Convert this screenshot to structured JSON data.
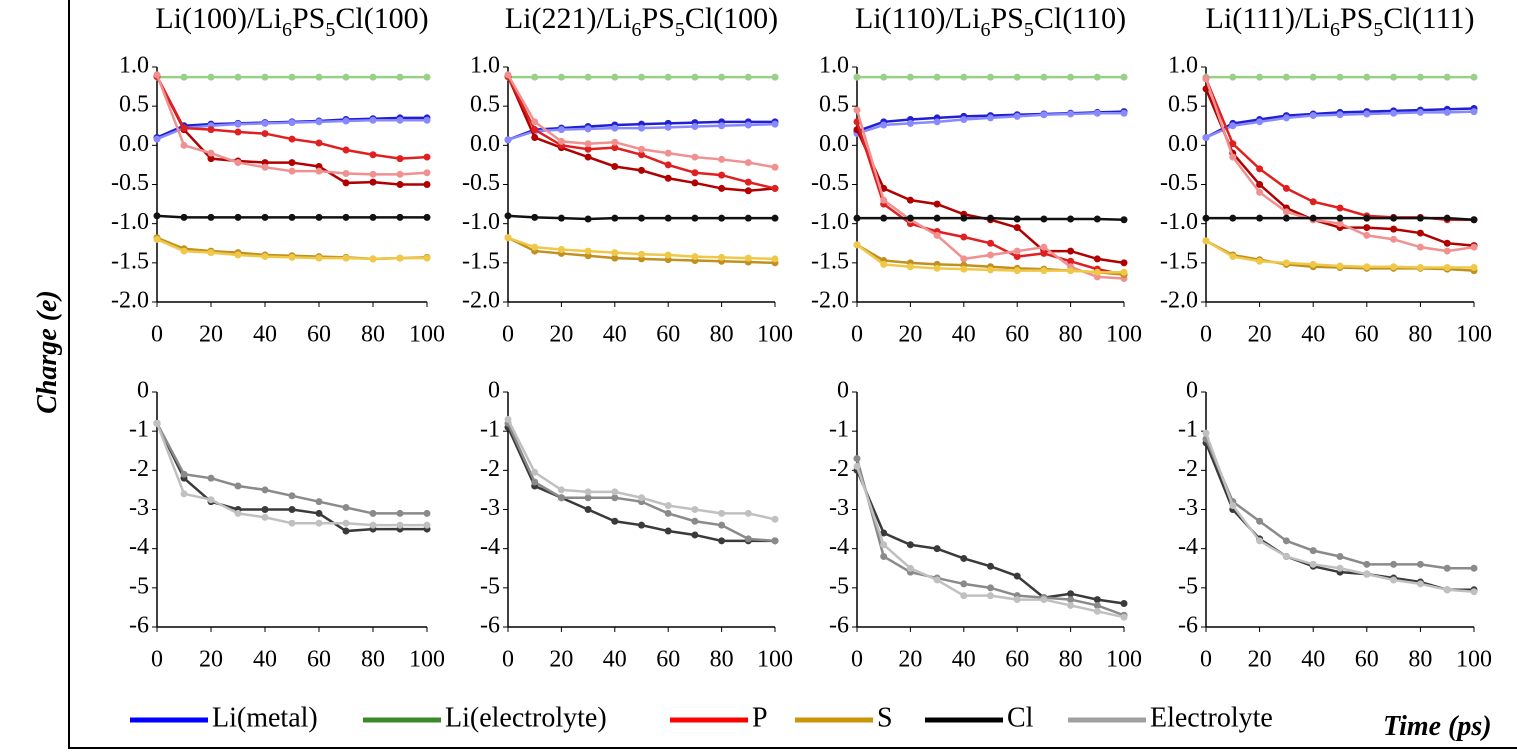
{
  "ylabel": "Charge (e)",
  "xlabel": "Time (ps)",
  "legend": [
    {
      "name": "Li(metal)",
      "color": "#0000ff"
    },
    {
      "name": "Li(electrolyte)",
      "color": "#3a8a2a"
    },
    {
      "name": "P",
      "color": "#ff0000"
    },
    {
      "name": "S",
      "color": "#c8960a"
    },
    {
      "name": "Cl",
      "color": "#000000"
    },
    {
      "name": "Electrolyte",
      "color": "#a0a0a0"
    }
  ],
  "chart_data": [
    {
      "type": "line",
      "title": "Li(100)/Li6PS5Cl(100)",
      "x": [
        0,
        10,
        20,
        30,
        40,
        50,
        60,
        70,
        80,
        90,
        100
      ],
      "xlim": [
        0,
        100
      ],
      "xticks": [
        0,
        20,
        40,
        60,
        80,
        100
      ],
      "ylim": [
        -2,
        1
      ],
      "yticks": [
        {
          "value": -2,
          "label": "-2.0"
        },
        -1.5,
        {
          "value": -1,
          "label": "-1.0"
        },
        -0.5,
        {
          "value": 0,
          "label": "0.0"
        },
        0.5,
        {
          "value": 1,
          "label": "1.0"
        }
      ],
      "series": [
        {
          "color": "#2020d0",
          "values": [
            0.1,
            0.25,
            0.27,
            0.28,
            0.29,
            0.3,
            0.31,
            0.33,
            0.34,
            0.35,
            0.35
          ]
        },
        {
          "color": "#8888ff",
          "values": [
            0.08,
            0.22,
            0.25,
            0.27,
            0.28,
            0.29,
            0.3,
            0.31,
            0.32,
            0.32,
            0.32
          ]
        },
        {
          "color": "#98d088",
          "values": [
            0.87,
            0.87,
            0.87,
            0.87,
            0.87,
            0.87,
            0.87,
            0.87,
            0.87,
            0.87,
            0.87
          ]
        },
        {
          "color": "#b00000",
          "values": [
            0.88,
            0.2,
            -0.17,
            -0.2,
            -0.22,
            -0.22,
            -0.27,
            -0.48,
            -0.47,
            -0.5,
            -0.5
          ]
        },
        {
          "color": "#e02020",
          "values": [
            0.88,
            0.22,
            0.2,
            0.17,
            0.15,
            0.08,
            0.03,
            -0.06,
            -0.12,
            -0.17,
            -0.15
          ]
        },
        {
          "color": "#f09090",
          "values": [
            0.9,
            0,
            -0.1,
            -0.22,
            -0.28,
            -0.33,
            -0.33,
            -0.36,
            -0.37,
            -0.37,
            -0.35
          ]
        },
        {
          "color": "#c09020",
          "values": [
            -1.18,
            -1.32,
            -1.35,
            -1.37,
            -1.4,
            -1.41,
            -1.42,
            -1.43,
            -1.45,
            -1.44,
            -1.43
          ]
        },
        {
          "color": "#f0c848",
          "values": [
            -1.2,
            -1.35,
            -1.37,
            -1.4,
            -1.42,
            -1.43,
            -1.44,
            -1.44,
            -1.45,
            -1.44,
            -1.44
          ]
        },
        {
          "color": "#111111",
          "values": [
            -0.9,
            -0.92,
            -0.92,
            -0.92,
            -0.92,
            -0.92,
            -0.92,
            -0.92,
            -0.92,
            -0.92,
            -0.92
          ]
        }
      ]
    },
    {
      "type": "line",
      "title": "Li(221)/Li6PS5Cl(100)",
      "x": [
        0,
        10,
        20,
        30,
        40,
        50,
        60,
        70,
        80,
        90,
        100
      ],
      "xlim": [
        0,
        100
      ],
      "xticks": [
        0,
        20,
        40,
        60,
        80,
        100
      ],
      "ylim": [
        -2,
        1
      ],
      "yticks": [
        {
          "value": -2,
          "label": "-2.0"
        },
        -1.5,
        {
          "value": -1,
          "label": "-1.0"
        },
        -0.5,
        {
          "value": 0,
          "label": "0.0"
        },
        0.5,
        {
          "value": 1,
          "label": "1.0"
        }
      ],
      "series": [
        {
          "color": "#2020d0",
          "values": [
            0.07,
            0.2,
            0.22,
            0.24,
            0.26,
            0.27,
            0.28,
            0.29,
            0.3,
            0.3,
            0.3
          ]
        },
        {
          "color": "#8888ff",
          "values": [
            0.07,
            0.18,
            0.2,
            0.21,
            0.22,
            0.22,
            0.23,
            0.24,
            0.25,
            0.26,
            0.27
          ]
        },
        {
          "color": "#98d088",
          "values": [
            0.87,
            0.87,
            0.87,
            0.87,
            0.87,
            0.87,
            0.87,
            0.87,
            0.87,
            0.87,
            0.87
          ]
        },
        {
          "color": "#b00000",
          "values": [
            0.88,
            0.1,
            -0.03,
            -0.15,
            -0.27,
            -0.32,
            -0.42,
            -0.48,
            -0.55,
            -0.58,
            -0.55
          ]
        },
        {
          "color": "#e02020",
          "values": [
            0.88,
            0.2,
            0,
            -0.05,
            -0.03,
            -0.12,
            -0.25,
            -0.35,
            -0.38,
            -0.47,
            -0.55
          ]
        },
        {
          "color": "#f09090",
          "values": [
            0.9,
            0.3,
            0.05,
            0.02,
            0.04,
            -0.05,
            -0.1,
            -0.15,
            -0.18,
            -0.22,
            -0.28
          ]
        },
        {
          "color": "#c09020",
          "values": [
            -1.18,
            -1.35,
            -1.38,
            -1.41,
            -1.44,
            -1.45,
            -1.46,
            -1.47,
            -1.48,
            -1.49,
            -1.5
          ]
        },
        {
          "color": "#f0c848",
          "values": [
            -1.18,
            -1.3,
            -1.33,
            -1.35,
            -1.37,
            -1.39,
            -1.4,
            -1.42,
            -1.43,
            -1.44,
            -1.45
          ]
        },
        {
          "color": "#111111",
          "values": [
            -0.9,
            -0.92,
            -0.93,
            -0.94,
            -0.93,
            -0.93,
            -0.93,
            -0.93,
            -0.93,
            -0.93,
            -0.93
          ]
        }
      ]
    },
    {
      "type": "line",
      "title": "Li(110)/Li6PS5Cl(110)",
      "x": [
        0,
        10,
        20,
        30,
        40,
        50,
        60,
        70,
        80,
        90,
        100
      ],
      "xlim": [
        0,
        100
      ],
      "xticks": [
        0,
        20,
        40,
        60,
        80,
        100
      ],
      "ylim": [
        -2,
        1
      ],
      "yticks": [
        {
          "value": -2,
          "label": "-2.0"
        },
        -1.5,
        {
          "value": -1,
          "label": "-1.0"
        },
        -0.5,
        {
          "value": 0,
          "label": "0.0"
        },
        0.5,
        {
          "value": 1,
          "label": "1.0"
        }
      ],
      "series": [
        {
          "color": "#2020d0",
          "values": [
            0.18,
            0.3,
            0.33,
            0.35,
            0.37,
            0.38,
            0.39,
            0.4,
            0.41,
            0.42,
            0.43
          ]
        },
        {
          "color": "#8888ff",
          "values": [
            0.15,
            0.26,
            0.28,
            0.3,
            0.33,
            0.35,
            0.37,
            0.39,
            0.4,
            0.41,
            0.41
          ]
        },
        {
          "color": "#98d088",
          "values": [
            0.87,
            0.87,
            0.87,
            0.87,
            0.87,
            0.87,
            0.87,
            0.87,
            0.87,
            0.87,
            0.87
          ]
        },
        {
          "color": "#b00000",
          "values": [
            0.2,
            -0.55,
            -0.7,
            -0.75,
            -0.88,
            -0.95,
            -1.05,
            -1.35,
            -1.35,
            -1.45,
            -1.5
          ]
        },
        {
          "color": "#e02020",
          "values": [
            0.3,
            -0.75,
            -1,
            -1.1,
            -1.17,
            -1.25,
            -1.42,
            -1.38,
            -1.48,
            -1.58,
            -1.65
          ]
        },
        {
          "color": "#f09090",
          "values": [
            0.45,
            -0.7,
            -0.95,
            -1.15,
            -1.45,
            -1.4,
            -1.35,
            -1.3,
            -1.55,
            -1.68,
            -1.7
          ]
        },
        {
          "color": "#c09020",
          "values": [
            -1.27,
            -1.47,
            -1.5,
            -1.52,
            -1.53,
            -1.55,
            -1.57,
            -1.58,
            -1.6,
            -1.62,
            -1.65
          ]
        },
        {
          "color": "#f0c848",
          "values": [
            -1.27,
            -1.52,
            -1.55,
            -1.57,
            -1.58,
            -1.59,
            -1.6,
            -1.6,
            -1.6,
            -1.62,
            -1.62
          ]
        },
        {
          "color": "#111111",
          "values": [
            -0.93,
            -0.93,
            -0.93,
            -0.93,
            -0.93,
            -0.93,
            -0.94,
            -0.94,
            -0.94,
            -0.94,
            -0.95
          ]
        }
      ]
    },
    {
      "type": "line",
      "title": "Li(111)/Li6PS5Cl(111)",
      "x": [
        0,
        10,
        20,
        30,
        40,
        50,
        60,
        70,
        80,
        90,
        100
      ],
      "xlim": [
        0,
        100
      ],
      "xticks": [
        0,
        20,
        40,
        60,
        80,
        100
      ],
      "ylim": [
        -2,
        1
      ],
      "yticks": [
        {
          "value": -2,
          "label": "-2.0"
        },
        -1.5,
        {
          "value": -1,
          "label": "-1.0"
        },
        -0.5,
        {
          "value": 0,
          "label": "0.0"
        },
        0.5,
        {
          "value": 1,
          "label": "1.0"
        }
      ],
      "series": [
        {
          "color": "#2020d0",
          "values": [
            0.1,
            0.28,
            0.33,
            0.38,
            0.4,
            0.42,
            0.43,
            0.44,
            0.45,
            0.46,
            0.47
          ]
        },
        {
          "color": "#8888ff",
          "values": [
            0.1,
            0.25,
            0.3,
            0.35,
            0.38,
            0.39,
            0.4,
            0.41,
            0.42,
            0.42,
            0.43
          ]
        },
        {
          "color": "#98d088",
          "values": [
            0.87,
            0.87,
            0.87,
            0.87,
            0.87,
            0.87,
            0.87,
            0.87,
            0.87,
            0.87,
            0.87
          ]
        },
        {
          "color": "#b00000",
          "values": [
            0.72,
            -0.1,
            -0.5,
            -0.8,
            -0.95,
            -1.05,
            -1.05,
            -1.07,
            -1.12,
            -1.25,
            -1.28
          ]
        },
        {
          "color": "#e02020",
          "values": [
            0.85,
            0.02,
            -0.3,
            -0.55,
            -0.72,
            -0.8,
            -0.9,
            -0.92,
            -0.92,
            -0.95,
            -0.95
          ]
        },
        {
          "color": "#f09090",
          "values": [
            0.85,
            -0.15,
            -0.6,
            -0.85,
            -0.95,
            -1,
            -1.15,
            -1.2,
            -1.3,
            -1.35,
            -1.3
          ]
        },
        {
          "color": "#c09020",
          "values": [
            -1.22,
            -1.4,
            -1.46,
            -1.52,
            -1.55,
            -1.56,
            -1.57,
            -1.57,
            -1.57,
            -1.58,
            -1.6
          ]
        },
        {
          "color": "#f0c848",
          "values": [
            -1.22,
            -1.42,
            -1.48,
            -1.5,
            -1.52,
            -1.54,
            -1.55,
            -1.55,
            -1.56,
            -1.56,
            -1.56
          ]
        },
        {
          "color": "#111111",
          "values": [
            -0.93,
            -0.93,
            -0.93,
            -0.93,
            -0.93,
            -0.93,
            -0.93,
            -0.93,
            -0.93,
            -0.93,
            -0.95
          ]
        }
      ]
    },
    {
      "type": "line",
      "x": [
        0,
        10,
        20,
        30,
        40,
        50,
        60,
        70,
        80,
        90,
        100
      ],
      "xlim": [
        0,
        100
      ],
      "xticks": [
        0,
        20,
        40,
        60,
        80,
        100
      ],
      "ylim": [
        -6,
        0
      ],
      "yticks": [
        -6,
        -5,
        -4,
        -3,
        -2,
        -1,
        0
      ],
      "series": [
        {
          "color": "#3a3a3a",
          "values": [
            -0.8,
            -2.2,
            -2.8,
            -3,
            -3,
            -3,
            -3.1,
            -3.55,
            -3.5,
            -3.5,
            -3.5
          ]
        },
        {
          "color": "#8a8a8a",
          "values": [
            -0.8,
            -2.1,
            -2.2,
            -2.4,
            -2.5,
            -2.65,
            -2.8,
            -2.95,
            -3.1,
            -3.1,
            -3.1
          ]
        },
        {
          "color": "#c0c0c0",
          "values": [
            -0.8,
            -2.6,
            -2.75,
            -3.1,
            -3.2,
            -3.35,
            -3.35,
            -3.35,
            -3.4,
            -3.4,
            -3.4
          ]
        }
      ]
    },
    {
      "type": "line",
      "x": [
        0,
        10,
        20,
        30,
        40,
        50,
        60,
        70,
        80,
        90,
        100
      ],
      "xlim": [
        0,
        100
      ],
      "xticks": [
        0,
        20,
        40,
        60,
        80,
        100
      ],
      "ylim": [
        -6,
        0
      ],
      "yticks": [
        -6,
        -5,
        -4,
        -3,
        -2,
        -1,
        0
      ],
      "series": [
        {
          "color": "#3a3a3a",
          "values": [
            -0.9,
            -2.4,
            -2.7,
            -3,
            -3.3,
            -3.4,
            -3.55,
            -3.65,
            -3.8,
            -3.8,
            -3.8
          ]
        },
        {
          "color": "#8a8a8a",
          "values": [
            -0.8,
            -2.3,
            -2.7,
            -2.7,
            -2.7,
            -2.8,
            -3.1,
            -3.3,
            -3.4,
            -3.75,
            -3.8
          ]
        },
        {
          "color": "#c0c0c0",
          "values": [
            -0.7,
            -2.05,
            -2.5,
            -2.55,
            -2.55,
            -2.7,
            -2.9,
            -3,
            -3.1,
            -3.1,
            -3.25
          ]
        }
      ]
    },
    {
      "type": "line",
      "x": [
        0,
        10,
        20,
        30,
        40,
        50,
        60,
        70,
        80,
        90,
        100
      ],
      "xlim": [
        0,
        100
      ],
      "xticks": [
        0,
        20,
        40,
        60,
        80,
        100
      ],
      "ylim": [
        -6,
        0
      ],
      "yticks": [
        -6,
        -5,
        -4,
        -3,
        -2,
        -1,
        0
      ],
      "series": [
        {
          "color": "#3a3a3a",
          "values": [
            -2,
            -3.6,
            -3.9,
            -4,
            -4.25,
            -4.45,
            -4.7,
            -5.25,
            -5.15,
            -5.3,
            -5.4
          ]
        },
        {
          "color": "#8a8a8a",
          "values": [
            -1.7,
            -4.2,
            -4.6,
            -4.75,
            -4.9,
            -5,
            -5.2,
            -5.25,
            -5.3,
            -5.45,
            -5.7
          ]
        },
        {
          "color": "#c0c0c0",
          "values": [
            -1.9,
            -3.9,
            -4.5,
            -4.8,
            -5.2,
            -5.2,
            -5.3,
            -5.3,
            -5.45,
            -5.6,
            -5.75
          ]
        }
      ]
    },
    {
      "type": "line",
      "x": [
        0,
        10,
        20,
        30,
        40,
        50,
        60,
        70,
        80,
        90,
        100
      ],
      "xlim": [
        0,
        100
      ],
      "xticks": [
        0,
        20,
        40,
        60,
        80,
        100
      ],
      "ylim": [
        -6,
        0
      ],
      "yticks": [
        -6,
        -5,
        -4,
        -3,
        -2,
        -1,
        0
      ],
      "series": [
        {
          "color": "#3a3a3a",
          "values": [
            -1.3,
            -3,
            -3.75,
            -4.2,
            -4.45,
            -4.6,
            -4.65,
            -4.75,
            -4.85,
            -5.05,
            -5.05
          ]
        },
        {
          "color": "#8a8a8a",
          "values": [
            -1.2,
            -2.8,
            -3.3,
            -3.8,
            -4.05,
            -4.2,
            -4.4,
            -4.4,
            -4.4,
            -4.5,
            -4.5
          ]
        },
        {
          "color": "#c0c0c0",
          "values": [
            -1.05,
            -2.9,
            -3.8,
            -4.2,
            -4.4,
            -4.5,
            -4.65,
            -4.8,
            -4.9,
            -5.05,
            -5.1
          ]
        }
      ]
    }
  ]
}
